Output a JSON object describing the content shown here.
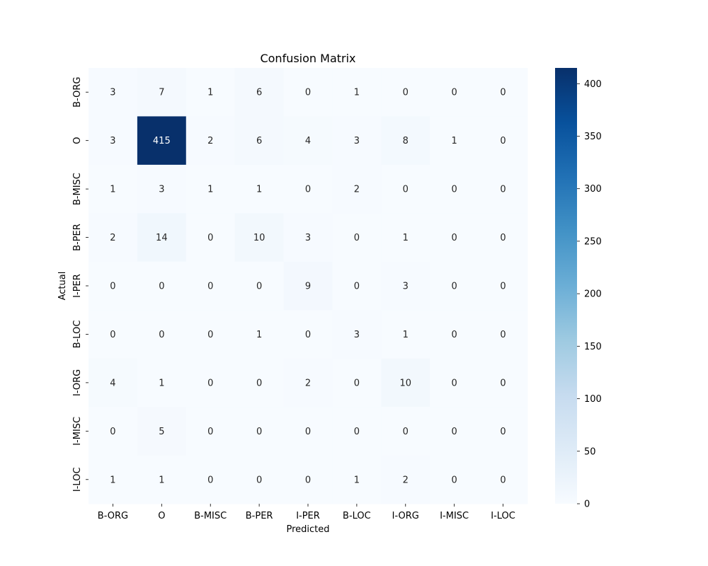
{
  "chart_data": {
    "type": "heatmap",
    "title": "Confusion Matrix",
    "xlabel": "Predicted",
    "ylabel": "Actual",
    "x_categories": [
      "B-ORG",
      "O",
      "B-MISC",
      "B-PER",
      "I-PER",
      "B-LOC",
      "I-ORG",
      "I-MISC",
      "I-LOC"
    ],
    "y_categories": [
      "B-ORG",
      "O",
      "B-MISC",
      "B-PER",
      "I-PER",
      "B-LOC",
      "I-ORG",
      "I-MISC",
      "I-LOC"
    ],
    "values": [
      [
        3,
        7,
        1,
        6,
        0,
        1,
        0,
        0,
        0
      ],
      [
        3,
        415,
        2,
        6,
        4,
        3,
        8,
        1,
        0
      ],
      [
        1,
        3,
        1,
        1,
        0,
        2,
        0,
        0,
        0
      ],
      [
        2,
        14,
        0,
        10,
        3,
        0,
        1,
        0,
        0
      ],
      [
        0,
        0,
        0,
        0,
        9,
        0,
        3,
        0,
        0
      ],
      [
        0,
        0,
        0,
        1,
        0,
        3,
        1,
        0,
        0
      ],
      [
        4,
        1,
        0,
        0,
        2,
        0,
        10,
        0,
        0
      ],
      [
        0,
        5,
        0,
        0,
        0,
        0,
        0,
        0,
        0
      ],
      [
        1,
        1,
        0,
        0,
        0,
        1,
        2,
        0,
        0
      ]
    ],
    "colormap": "Blues",
    "color_range": [
      0,
      415
    ],
    "colorbar_ticks": [
      0,
      50,
      100,
      150,
      200,
      250,
      300,
      350,
      400
    ],
    "colorbar_position": "right",
    "annotations": true,
    "grid": false
  }
}
